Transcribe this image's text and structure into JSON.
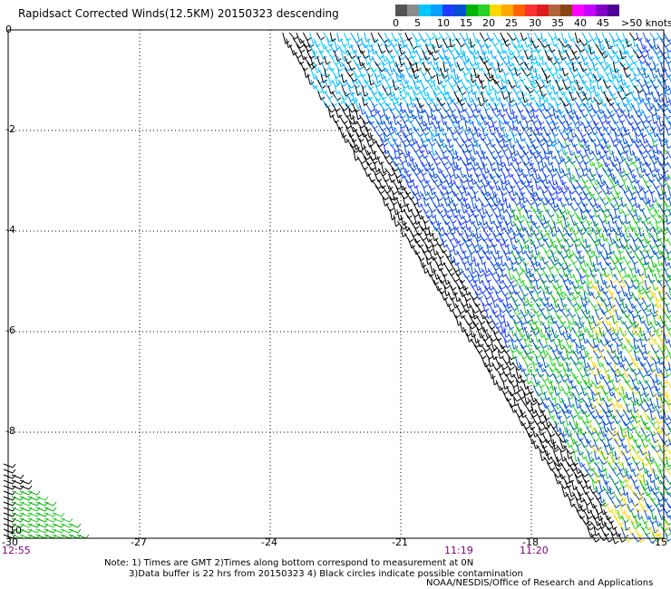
{
  "title": "Rapidsact Corrected Winds(12.5KM) 20150323 descending",
  "legend": {
    "colors": [
      "#545454",
      "#8c8c8c",
      "#00c8ff",
      "#00a0ff",
      "#1e3cff",
      "#0050d0",
      "#00b400",
      "#28d228",
      "#ffd700",
      "#ffaa00",
      "#ff6400",
      "#ff3232",
      "#dc1e1e",
      "#b4643c",
      "#8b4513",
      "#ff00ff",
      "#c800ff",
      "#8000c8",
      "#500096"
    ],
    "labels": [
      "0",
      "5",
      "10",
      "15",
      "20",
      "25",
      "30",
      "35",
      "40",
      "45",
      ">50 knots"
    ]
  },
  "map": {
    "lat_labels": [
      "0",
      "-2",
      "-4",
      "-6",
      "-8",
      "-10"
    ],
    "lon_labels": [
      "-30",
      "-27",
      "-24",
      "-21",
      "-18",
      "-15"
    ],
    "time_labels": [
      "12:55",
      "11:19",
      "11:20"
    ]
  },
  "notes": {
    "line1": "Note: 1) Times are GMT 2)Times along bottom correspond to measurement at 0N",
    "line2": "3)Data buffer is 22 hrs from 20150323 4) Black circles indicate possible contamination",
    "credit": "NOAA/NESDIS/Office of Research and Applications"
  }
}
